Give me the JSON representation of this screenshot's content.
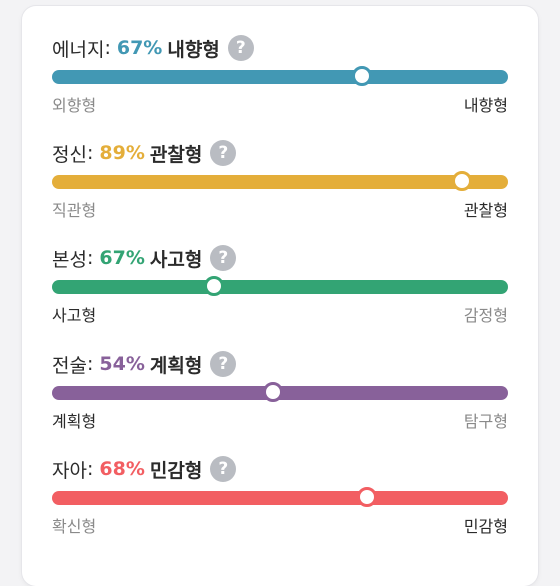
{
  "traits": [
    {
      "name": "에너지",
      "percent": "67%",
      "type": "내향형",
      "left_label": "외향형",
      "right_label": "내향형",
      "active_side": "right",
      "position": 0.68,
      "color": "#4298b4"
    },
    {
      "name": "정신",
      "percent": "89%",
      "type": "관찰형",
      "left_label": "직관형",
      "right_label": "관찰형",
      "active_side": "right",
      "position": 0.9,
      "color": "#e4ae3a"
    },
    {
      "name": "본성",
      "percent": "67%",
      "type": "사고형",
      "left_label": "사고형",
      "right_label": "감정형",
      "active_side": "left",
      "position": 0.355,
      "color": "#33a474"
    },
    {
      "name": "전술",
      "percent": "54%",
      "type": "계획형",
      "left_label": "계획형",
      "right_label": "탐구형",
      "active_side": "left",
      "position": 0.485,
      "color": "#88619a"
    },
    {
      "name": "자아",
      "percent": "68%",
      "type": "민감형",
      "left_label": "확신형",
      "right_label": "민감형",
      "active_side": "right",
      "position": 0.69,
      "color": "#f25e62"
    }
  ],
  "help_glyph": "?",
  "help_icon": "question-circle-icon",
  "colon": ":"
}
